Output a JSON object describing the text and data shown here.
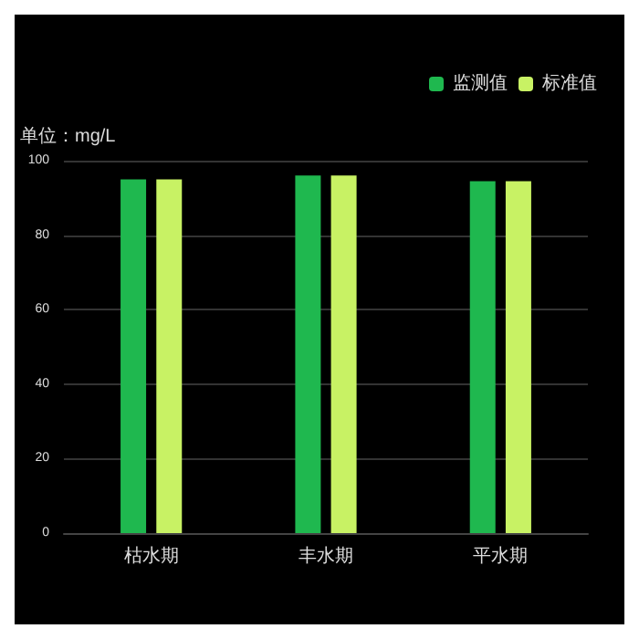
{
  "chart_data": {
    "type": "bar",
    "ylabel": "单位：mg/L",
    "categories": [
      "枯水期",
      "丰水期",
      "平水期"
    ],
    "series": [
      {
        "name": "监测值",
        "color": "#1fb84f",
        "values": [
          95,
          96,
          94.5
        ]
      },
      {
        "name": "标准值",
        "color": "#c8f264",
        "values": [
          95,
          96,
          94.5
        ]
      }
    ],
    "ylim": [
      0,
      100
    ],
    "yticks": [
      0,
      20,
      40,
      60,
      80,
      100
    ],
    "grid": "y",
    "legend": "top right"
  }
}
